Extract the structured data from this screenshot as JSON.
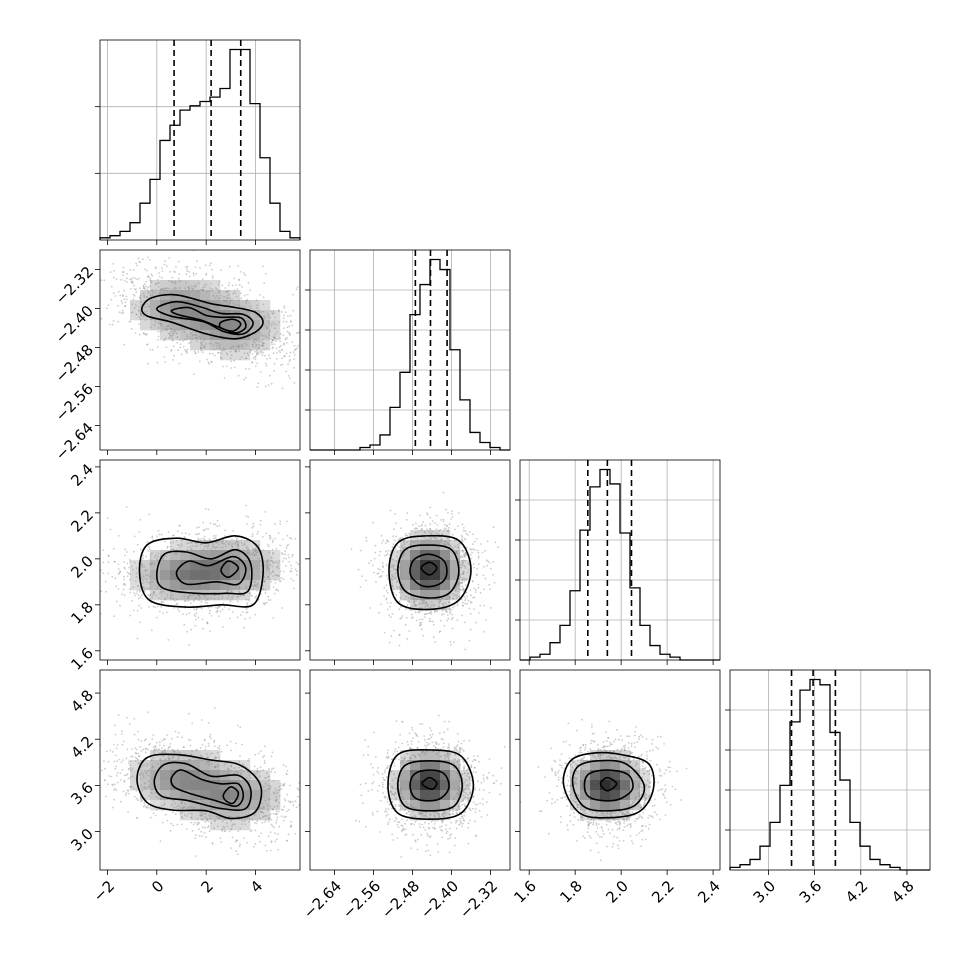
{
  "chart_data": {
    "type": "corner",
    "parameters": [
      {
        "range": [
          -2.3,
          5.8
        ],
        "ticks": [
          -2,
          0,
          2,
          4
        ],
        "tick_labels": [
          "−2",
          "0",
          "2",
          "4"
        ],
        "quantiles": [
          0.7,
          2.2,
          3.4
        ],
        "hist": [
          1,
          2,
          4,
          8,
          17,
          28,
          46,
          53,
          60,
          62,
          64,
          66,
          70,
          88,
          88,
          63,
          38,
          17,
          4,
          1
        ],
        "hist_grid_count": 2
      },
      {
        "range": [
          -2.69,
          -2.28
        ],
        "ticks": [
          -2.64,
          -2.56,
          -2.48,
          -2.4,
          -2.32
        ],
        "tick_labels": [
          "−2.64",
          "−2.56",
          "−2.48",
          "−2.40",
          "−2.32"
        ],
        "quantiles": [
          -2.474,
          -2.443,
          -2.409
        ],
        "hist": [
          0,
          0,
          0,
          0,
          0,
          1,
          2,
          6,
          17,
          31,
          54,
          66,
          76,
          72,
          40,
          20,
          7,
          3,
          1,
          0
        ],
        "hist_grid_count": 4
      },
      {
        "range": [
          1.56,
          2.43
        ],
        "ticks": [
          1.6,
          1.8,
          2.0,
          2.2,
          2.4
        ],
        "tick_labels": [
          "1.6",
          "1.8",
          "2.0",
          "2.2",
          "2.4"
        ],
        "quantiles": [
          1.855,
          1.94,
          2.045
        ],
        "hist": [
          0,
          1,
          2,
          6,
          12,
          24,
          45,
          60,
          66,
          61,
          44,
          25,
          12,
          5,
          2,
          1,
          0,
          0,
          0,
          0
        ],
        "hist_grid_count": 4
      },
      {
        "range": [
          2.5,
          5.1
        ],
        "ticks": [
          3.0,
          3.6,
          4.2,
          4.8
        ],
        "tick_labels": [
          "3.0",
          "3.6",
          "4.2",
          "4.8"
        ],
        "quantiles": [
          3.3,
          3.58,
          3.87
        ],
        "hist": [
          1,
          2,
          4,
          9,
          18,
          32,
          56,
          68,
          72,
          70,
          52,
          34,
          18,
          9,
          4,
          2,
          1,
          0,
          0,
          0
        ],
        "hist_grid_count": 4
      }
    ],
    "pairs": [
      {
        "row": 1,
        "col": 0,
        "center": [
          1.9,
          -2.415
        ],
        "sd": [
          1.35,
          0.042
        ],
        "rho": -0.3,
        "modes": [
          [
            0.9,
            -2.397
          ],
          [
            3.1,
            -2.437
          ]
        ],
        "contours": [
          [
            [
              -0.6,
              -2.398
            ],
            [
              -0.2,
              -2.378
            ],
            [
              0.8,
              -2.372
            ],
            [
              2.2,
              -2.39
            ],
            [
              3.2,
              -2.398
            ],
            [
              4.0,
              -2.408
            ],
            [
              4.3,
              -2.428
            ],
            [
              4.0,
              -2.448
            ],
            [
              3.2,
              -2.462
            ],
            [
              2.0,
              -2.452
            ],
            [
              0.6,
              -2.428
            ],
            [
              -0.4,
              -2.415
            ]
          ],
          [
            [
              0.0,
              -2.4
            ],
            [
              0.8,
              -2.386
            ],
            [
              1.8,
              -2.397
            ],
            [
              2.6,
              -2.41
            ],
            [
              3.5,
              -2.412
            ],
            [
              3.9,
              -2.43
            ],
            [
              3.5,
              -2.452
            ],
            [
              2.7,
              -2.447
            ],
            [
              1.9,
              -2.427
            ],
            [
              0.6,
              -2.416
            ]
          ],
          [
            [
              0.6,
              -2.404
            ],
            [
              1.3,
              -2.398
            ],
            [
              2.0,
              -2.414
            ],
            [
              2.6,
              -2.418
            ],
            [
              3.4,
              -2.419
            ],
            [
              3.6,
              -2.438
            ],
            [
              3.2,
              -2.45
            ],
            [
              2.6,
              -2.44
            ],
            [
              1.8,
              -2.424
            ],
            [
              0.9,
              -2.413
            ]
          ],
          [
            [
              2.6,
              -2.428
            ],
            [
              3.1,
              -2.422
            ],
            [
              3.4,
              -2.432
            ],
            [
              3.1,
              -2.446
            ],
            [
              2.6,
              -2.44
            ]
          ]
        ]
      },
      {
        "row": 2,
        "col": 0,
        "center": [
          1.9,
          1.94
        ],
        "sd": [
          1.4,
          0.085
        ],
        "rho": 0.05,
        "modes": [
          [
            1.0,
            1.93
          ],
          [
            3.0,
            1.96
          ]
        ],
        "contours": [
          [
            [
              -0.7,
              1.94
            ],
            [
              -0.4,
              2.06
            ],
            [
              0.8,
              2.09
            ],
            [
              2.0,
              2.07
            ],
            [
              3.2,
              2.1
            ],
            [
              4.1,
              2.05
            ],
            [
              4.3,
              1.93
            ],
            [
              3.9,
              1.8
            ],
            [
              2.6,
              1.8
            ],
            [
              1.2,
              1.79
            ],
            [
              -0.3,
              1.82
            ]
          ],
          [
            [
              0.0,
              1.93
            ],
            [
              0.3,
              2.02
            ],
            [
              1.2,
              2.03
            ],
            [
              2.2,
              2.0
            ],
            [
              3.2,
              2.04
            ],
            [
              3.8,
              1.98
            ],
            [
              3.7,
              1.86
            ],
            [
              2.8,
              1.85
            ],
            [
              1.6,
              1.85
            ],
            [
              0.3,
              1.87
            ]
          ],
          [
            [
              0.8,
              1.94
            ],
            [
              1.3,
              1.99
            ],
            [
              2.1,
              1.97
            ],
            [
              3.1,
              2.01
            ],
            [
              3.6,
              1.96
            ],
            [
              3.3,
              1.89
            ],
            [
              2.4,
              1.9
            ],
            [
              1.2,
              1.89
            ]
          ],
          [
            [
              2.6,
              1.95
            ],
            [
              2.9,
              1.99
            ],
            [
              3.3,
              1.96
            ],
            [
              2.9,
              1.92
            ]
          ]
        ]
      },
      {
        "row": 2,
        "col": 1,
        "center": [
          -2.443,
          1.945
        ],
        "sd": [
          0.045,
          0.1
        ],
        "rho": 0.0,
        "modes": [
          [
            -2.446,
            1.95
          ]
        ],
        "contours": [
          [
            [
              -2.528,
              1.95
            ],
            [
              -2.51,
              2.07
            ],
            [
              -2.455,
              2.1
            ],
            [
              -2.385,
              2.08
            ],
            [
              -2.36,
              1.95
            ],
            [
              -2.385,
              1.82
            ],
            [
              -2.445,
              1.78
            ],
            [
              -2.51,
              1.81
            ]
          ],
          [
            [
              -2.51,
              1.95
            ],
            [
              -2.495,
              2.04
            ],
            [
              -2.45,
              2.06
            ],
            [
              -2.4,
              2.04
            ],
            [
              -2.385,
              1.94
            ],
            [
              -2.405,
              1.85
            ],
            [
              -2.45,
              1.83
            ],
            [
              -2.495,
              1.86
            ]
          ],
          [
            [
              -2.485,
              1.95
            ],
            [
              -2.475,
              2.0
            ],
            [
              -2.445,
              2.02
            ],
            [
              -2.415,
              1.99
            ],
            [
              -2.41,
              1.93
            ],
            [
              -2.425,
              1.89
            ],
            [
              -2.455,
              1.88
            ],
            [
              -2.478,
              1.91
            ]
          ],
          [
            [
              -2.462,
              1.96
            ],
            [
              -2.445,
              1.985
            ],
            [
              -2.43,
              1.96
            ],
            [
              -2.445,
              1.93
            ]
          ]
        ]
      },
      {
        "row": 3,
        "col": 0,
        "center": [
          1.9,
          3.6
        ],
        "sd": [
          1.4,
          0.27
        ],
        "rho": -0.2,
        "modes": [
          [
            0.9,
            3.7
          ],
          [
            3.1,
            3.45
          ]
        ],
        "contours": [
          [
            [
              -0.8,
              3.68
            ],
            [
              -0.4,
              3.96
            ],
            [
              0.8,
              4.0
            ],
            [
              2.2,
              3.93
            ],
            [
              3.4,
              3.86
            ],
            [
              4.2,
              3.6
            ],
            [
              4.0,
              3.26
            ],
            [
              3.0,
              3.17
            ],
            [
              2.0,
              3.27
            ],
            [
              0.6,
              3.28
            ],
            [
              -0.4,
              3.38
            ]
          ],
          [
            [
              -0.1,
              3.66
            ],
            [
              0.3,
              3.87
            ],
            [
              1.2,
              3.88
            ],
            [
              2.2,
              3.72
            ],
            [
              3.3,
              3.73
            ],
            [
              3.8,
              3.55
            ],
            [
              3.6,
              3.3
            ],
            [
              2.6,
              3.3
            ],
            [
              1.3,
              3.4
            ],
            [
              0.2,
              3.46
            ]
          ],
          [
            [
              0.6,
              3.7
            ],
            [
              1.0,
              3.8
            ],
            [
              1.8,
              3.68
            ],
            [
              2.6,
              3.62
            ],
            [
              3.3,
              3.62
            ],
            [
              3.5,
              3.45
            ],
            [
              3.2,
              3.33
            ],
            [
              2.4,
              3.4
            ],
            [
              1.3,
              3.5
            ],
            [
              0.7,
              3.58
            ]
          ],
          [
            [
              2.7,
              3.48
            ],
            [
              3.0,
              3.58
            ],
            [
              3.3,
              3.5
            ],
            [
              3.1,
              3.37
            ],
            [
              2.8,
              3.4
            ]
          ]
        ]
      },
      {
        "row": 3,
        "col": 1,
        "center": [
          -2.443,
          3.6
        ],
        "sd": [
          0.045,
          0.28
        ],
        "rho": 0.0,
        "modes": [
          [
            -2.445,
            3.63
          ]
        ],
        "contours": [
          [
            [
              -2.53,
              3.6
            ],
            [
              -2.51,
              4.0
            ],
            [
              -2.44,
              4.06
            ],
            [
              -2.38,
              3.98
            ],
            [
              -2.355,
              3.6
            ],
            [
              -2.38,
              3.24
            ],
            [
              -2.445,
              3.16
            ],
            [
              -2.51,
              3.24
            ]
          ],
          [
            [
              -2.51,
              3.6
            ],
            [
              -2.495,
              3.86
            ],
            [
              -2.445,
              3.92
            ],
            [
              -2.395,
              3.86
            ],
            [
              -2.378,
              3.6
            ],
            [
              -2.395,
              3.33
            ],
            [
              -2.445,
              3.27
            ],
            [
              -2.495,
              3.33
            ]
          ],
          [
            [
              -2.485,
              3.6
            ],
            [
              -2.475,
              3.75
            ],
            [
              -2.445,
              3.8
            ],
            [
              -2.415,
              3.75
            ],
            [
              -2.405,
              3.58
            ],
            [
              -2.42,
              3.44
            ],
            [
              -2.445,
              3.4
            ],
            [
              -2.475,
              3.44
            ]
          ],
          [
            [
              -2.46,
              3.62
            ],
            [
              -2.445,
              3.7
            ],
            [
              -2.43,
              3.63
            ],
            [
              -2.44,
              3.55
            ]
          ]
        ]
      },
      {
        "row": 3,
        "col": 2,
        "center": [
          1.945,
          3.6
        ],
        "sd": [
          0.1,
          0.27
        ],
        "rho": 0.0,
        "modes": [
          [
            1.94,
            3.6
          ]
        ],
        "contours": [
          [
            [
              1.75,
              3.6
            ],
            [
              1.78,
              3.92
            ],
            [
              1.88,
              4.02
            ],
            [
              2.0,
              4.0
            ],
            [
              2.12,
              3.88
            ],
            [
              2.14,
              3.55
            ],
            [
              2.08,
              3.26
            ],
            [
              1.95,
              3.18
            ],
            [
              1.82,
              3.24
            ]
          ],
          [
            [
              1.79,
              3.6
            ],
            [
              1.81,
              3.84
            ],
            [
              1.9,
              3.92
            ],
            [
              2.02,
              3.88
            ],
            [
              2.1,
              3.6
            ],
            [
              2.06,
              3.34
            ],
            [
              1.95,
              3.27
            ],
            [
              1.84,
              3.32
            ]
          ],
          [
            [
              1.84,
              3.6
            ],
            [
              1.86,
              3.75
            ],
            [
              1.94,
              3.8
            ],
            [
              2.03,
              3.74
            ],
            [
              2.05,
              3.56
            ],
            [
              2.0,
              3.43
            ],
            [
              1.93,
              3.4
            ],
            [
              1.86,
              3.45
            ]
          ],
          [
            [
              1.91,
              3.62
            ],
            [
              1.94,
              3.7
            ],
            [
              1.98,
              3.62
            ],
            [
              1.94,
              3.53
            ]
          ]
        ]
      }
    ]
  }
}
